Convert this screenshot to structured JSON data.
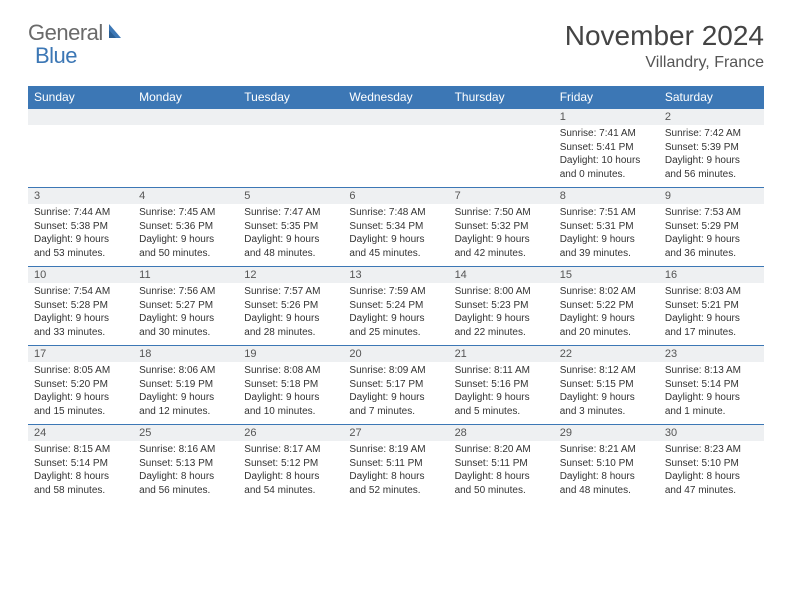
{
  "logo": {
    "part1": "General",
    "part2": "Blue"
  },
  "title": "November 2024",
  "location": "Villandry, France",
  "colors": {
    "header_bg": "#3c77b5",
    "header_text": "#ffffff",
    "daynum_bg": "#eef0f2",
    "border": "#3c77b5",
    "text": "#333333",
    "logo_gray": "#6a6a6a",
    "logo_blue": "#3c77b5"
  },
  "day_names": [
    "Sunday",
    "Monday",
    "Tuesday",
    "Wednesday",
    "Thursday",
    "Friday",
    "Saturday"
  ],
  "weeks": [
    [
      {
        "n": "",
        "sr": "",
        "ss": "",
        "dl": ""
      },
      {
        "n": "",
        "sr": "",
        "ss": "",
        "dl": ""
      },
      {
        "n": "",
        "sr": "",
        "ss": "",
        "dl": ""
      },
      {
        "n": "",
        "sr": "",
        "ss": "",
        "dl": ""
      },
      {
        "n": "",
        "sr": "",
        "ss": "",
        "dl": ""
      },
      {
        "n": "1",
        "sr": "Sunrise: 7:41 AM",
        "ss": "Sunset: 5:41 PM",
        "dl": "Daylight: 10 hours and 0 minutes."
      },
      {
        "n": "2",
        "sr": "Sunrise: 7:42 AM",
        "ss": "Sunset: 5:39 PM",
        "dl": "Daylight: 9 hours and 56 minutes."
      }
    ],
    [
      {
        "n": "3",
        "sr": "Sunrise: 7:44 AM",
        "ss": "Sunset: 5:38 PM",
        "dl": "Daylight: 9 hours and 53 minutes."
      },
      {
        "n": "4",
        "sr": "Sunrise: 7:45 AM",
        "ss": "Sunset: 5:36 PM",
        "dl": "Daylight: 9 hours and 50 minutes."
      },
      {
        "n": "5",
        "sr": "Sunrise: 7:47 AM",
        "ss": "Sunset: 5:35 PM",
        "dl": "Daylight: 9 hours and 48 minutes."
      },
      {
        "n": "6",
        "sr": "Sunrise: 7:48 AM",
        "ss": "Sunset: 5:34 PM",
        "dl": "Daylight: 9 hours and 45 minutes."
      },
      {
        "n": "7",
        "sr": "Sunrise: 7:50 AM",
        "ss": "Sunset: 5:32 PM",
        "dl": "Daylight: 9 hours and 42 minutes."
      },
      {
        "n": "8",
        "sr": "Sunrise: 7:51 AM",
        "ss": "Sunset: 5:31 PM",
        "dl": "Daylight: 9 hours and 39 minutes."
      },
      {
        "n": "9",
        "sr": "Sunrise: 7:53 AM",
        "ss": "Sunset: 5:29 PM",
        "dl": "Daylight: 9 hours and 36 minutes."
      }
    ],
    [
      {
        "n": "10",
        "sr": "Sunrise: 7:54 AM",
        "ss": "Sunset: 5:28 PM",
        "dl": "Daylight: 9 hours and 33 minutes."
      },
      {
        "n": "11",
        "sr": "Sunrise: 7:56 AM",
        "ss": "Sunset: 5:27 PM",
        "dl": "Daylight: 9 hours and 30 minutes."
      },
      {
        "n": "12",
        "sr": "Sunrise: 7:57 AM",
        "ss": "Sunset: 5:26 PM",
        "dl": "Daylight: 9 hours and 28 minutes."
      },
      {
        "n": "13",
        "sr": "Sunrise: 7:59 AM",
        "ss": "Sunset: 5:24 PM",
        "dl": "Daylight: 9 hours and 25 minutes."
      },
      {
        "n": "14",
        "sr": "Sunrise: 8:00 AM",
        "ss": "Sunset: 5:23 PM",
        "dl": "Daylight: 9 hours and 22 minutes."
      },
      {
        "n": "15",
        "sr": "Sunrise: 8:02 AM",
        "ss": "Sunset: 5:22 PM",
        "dl": "Daylight: 9 hours and 20 minutes."
      },
      {
        "n": "16",
        "sr": "Sunrise: 8:03 AM",
        "ss": "Sunset: 5:21 PM",
        "dl": "Daylight: 9 hours and 17 minutes."
      }
    ],
    [
      {
        "n": "17",
        "sr": "Sunrise: 8:05 AM",
        "ss": "Sunset: 5:20 PM",
        "dl": "Daylight: 9 hours and 15 minutes."
      },
      {
        "n": "18",
        "sr": "Sunrise: 8:06 AM",
        "ss": "Sunset: 5:19 PM",
        "dl": "Daylight: 9 hours and 12 minutes."
      },
      {
        "n": "19",
        "sr": "Sunrise: 8:08 AM",
        "ss": "Sunset: 5:18 PM",
        "dl": "Daylight: 9 hours and 10 minutes."
      },
      {
        "n": "20",
        "sr": "Sunrise: 8:09 AM",
        "ss": "Sunset: 5:17 PM",
        "dl": "Daylight: 9 hours and 7 minutes."
      },
      {
        "n": "21",
        "sr": "Sunrise: 8:11 AM",
        "ss": "Sunset: 5:16 PM",
        "dl": "Daylight: 9 hours and 5 minutes."
      },
      {
        "n": "22",
        "sr": "Sunrise: 8:12 AM",
        "ss": "Sunset: 5:15 PM",
        "dl": "Daylight: 9 hours and 3 minutes."
      },
      {
        "n": "23",
        "sr": "Sunrise: 8:13 AM",
        "ss": "Sunset: 5:14 PM",
        "dl": "Daylight: 9 hours and 1 minute."
      }
    ],
    [
      {
        "n": "24",
        "sr": "Sunrise: 8:15 AM",
        "ss": "Sunset: 5:14 PM",
        "dl": "Daylight: 8 hours and 58 minutes."
      },
      {
        "n": "25",
        "sr": "Sunrise: 8:16 AM",
        "ss": "Sunset: 5:13 PM",
        "dl": "Daylight: 8 hours and 56 minutes."
      },
      {
        "n": "26",
        "sr": "Sunrise: 8:17 AM",
        "ss": "Sunset: 5:12 PM",
        "dl": "Daylight: 8 hours and 54 minutes."
      },
      {
        "n": "27",
        "sr": "Sunrise: 8:19 AM",
        "ss": "Sunset: 5:11 PM",
        "dl": "Daylight: 8 hours and 52 minutes."
      },
      {
        "n": "28",
        "sr": "Sunrise: 8:20 AM",
        "ss": "Sunset: 5:11 PM",
        "dl": "Daylight: 8 hours and 50 minutes."
      },
      {
        "n": "29",
        "sr": "Sunrise: 8:21 AM",
        "ss": "Sunset: 5:10 PM",
        "dl": "Daylight: 8 hours and 48 minutes."
      },
      {
        "n": "30",
        "sr": "Sunrise: 8:23 AM",
        "ss": "Sunset: 5:10 PM",
        "dl": "Daylight: 8 hours and 47 minutes."
      }
    ]
  ]
}
